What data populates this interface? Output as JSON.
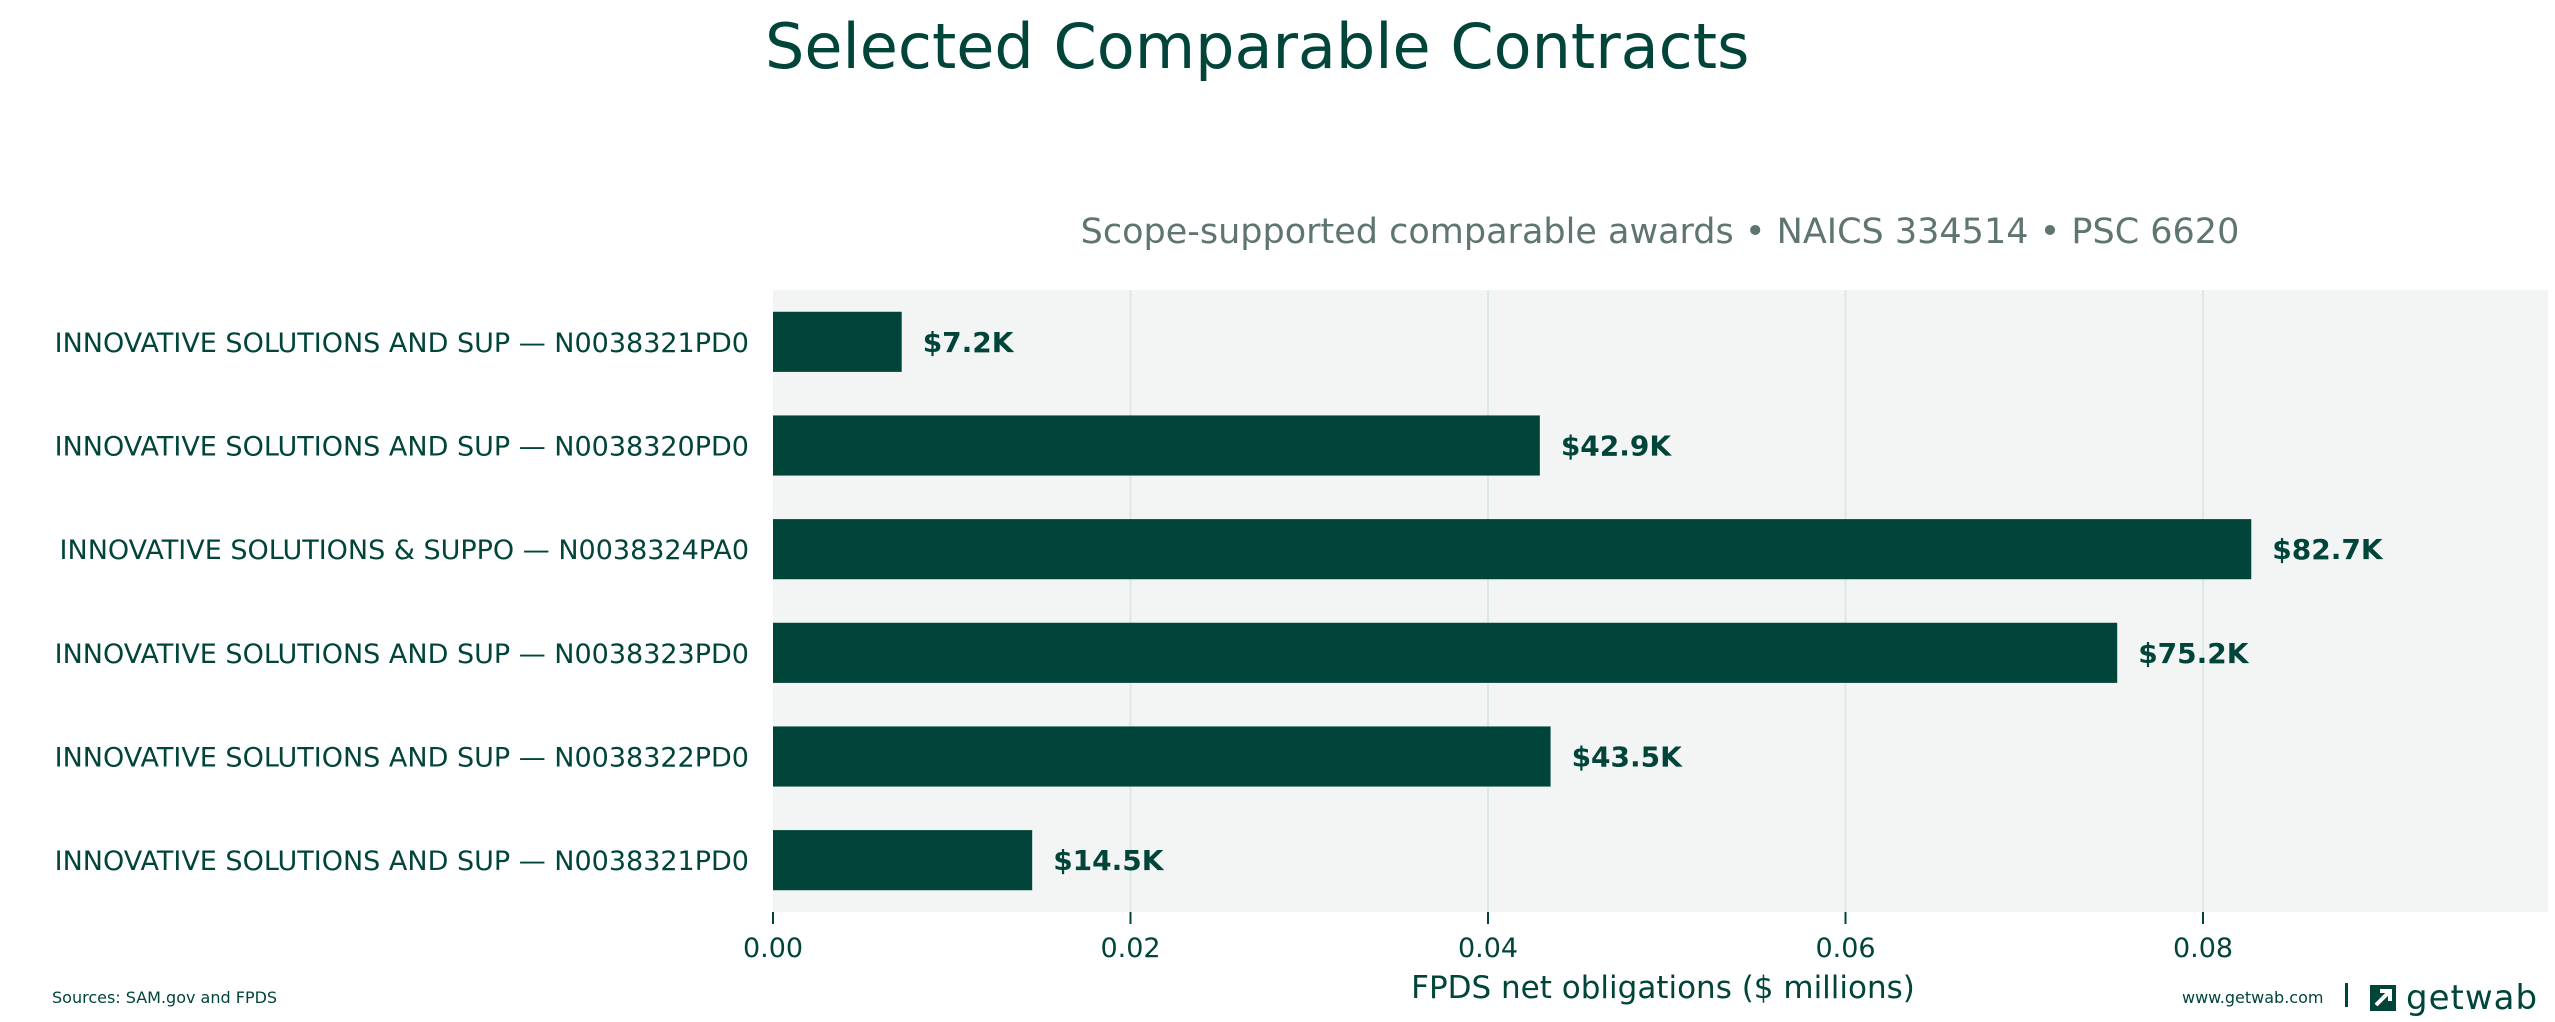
{
  "chart_data": {
    "type": "bar",
    "orientation": "horizontal",
    "title": "Selected Comparable Contracts",
    "subtitle": "Scope-supported comparable awards • NAICS 334514 • PSC 6620",
    "xlabel": "FPDS net obligations ($ millions)",
    "ylabel": "",
    "xlim": [
      0,
      0.0993
    ],
    "xticks": [
      0.0,
      0.02,
      0.04,
      0.06,
      0.08
    ],
    "xtick_labels": [
      "0.00",
      "0.02",
      "0.04",
      "0.06",
      "0.08"
    ],
    "grid": "vertical",
    "categories": [
      "INNOVATIVE SOLUTIONS AND SUP — N0038321PD0",
      "INNOVATIVE SOLUTIONS AND SUP — N0038320PD0",
      "INNOVATIVE SOLUTIONS & SUPPO — N0038324PA0",
      "INNOVATIVE SOLUTIONS AND SUP — N0038323PD0",
      "INNOVATIVE SOLUTIONS AND SUP — N0038322PD0",
      "INNOVATIVE SOLUTIONS AND SUP — N0038321PD0"
    ],
    "values": [
      0.0072,
      0.0429,
      0.0827,
      0.0752,
      0.0435,
      0.0145
    ],
    "data_labels": [
      "$7.2K",
      "$42.9K",
      "$82.7K",
      "$75.2K",
      "$43.5K",
      "$14.5K"
    ],
    "bar_color": "#00443a",
    "plot_background": "#f2f5f4"
  },
  "footer": {
    "sources": "Sources: SAM.gov and FPDS",
    "url": "www.getwab.com",
    "brand": "getwab",
    "brand_icon": "getwab-logo-icon"
  }
}
